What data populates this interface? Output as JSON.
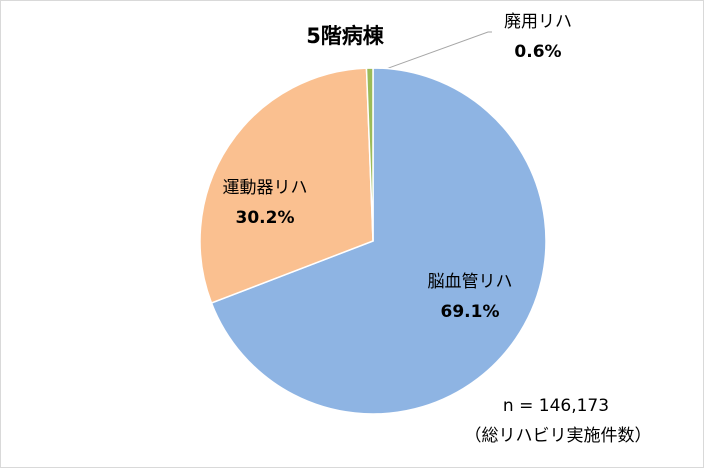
{
  "chart_data": {
    "type": "pie",
    "title": "5階病棟",
    "categories": [
      "脳血管リハ",
      "運動器リハ",
      "廃用リハ"
    ],
    "values": [
      69.1,
      30.2,
      0.6
    ],
    "value_labels": [
      "69.1%",
      "30.2%",
      "0.6%"
    ],
    "colors": [
      "#8eb4e3",
      "#fac090",
      "#9bbb59"
    ],
    "annotations": [
      "n = 146,173",
      "（総リハビリ実施件数）"
    ]
  }
}
